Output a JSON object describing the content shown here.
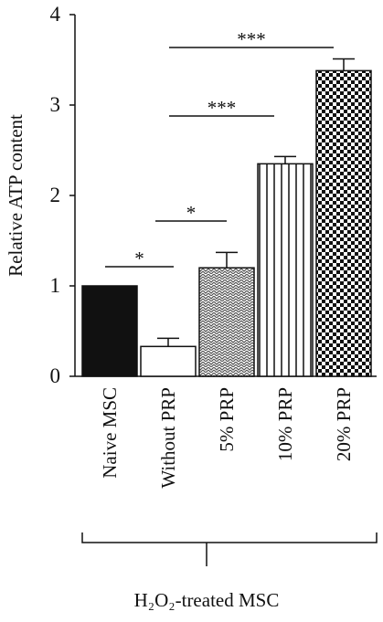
{
  "chart_data": {
    "type": "bar",
    "y_label": "Relative ATP content",
    "categories": [
      "Naive MSC",
      "Without PRP",
      "5% PRP",
      "10% PRP",
      "20% PRP"
    ],
    "values": [
      1.0,
      0.33,
      1.2,
      2.35,
      3.38
    ],
    "errors": [
      null,
      0.09,
      0.17,
      0.08,
      0.13
    ],
    "patterns": [
      "solid",
      "none",
      "dots",
      "vertical-stripes",
      "checker"
    ],
    "color": "#111111",
    "ylim": [
      0,
      4
    ],
    "yticks": [
      0,
      1,
      2,
      3,
      4
    ],
    "annotations": [
      "*",
      "*",
      "***",
      "***"
    ],
    "group_label": "H₂O₂-treated MSC"
  }
}
